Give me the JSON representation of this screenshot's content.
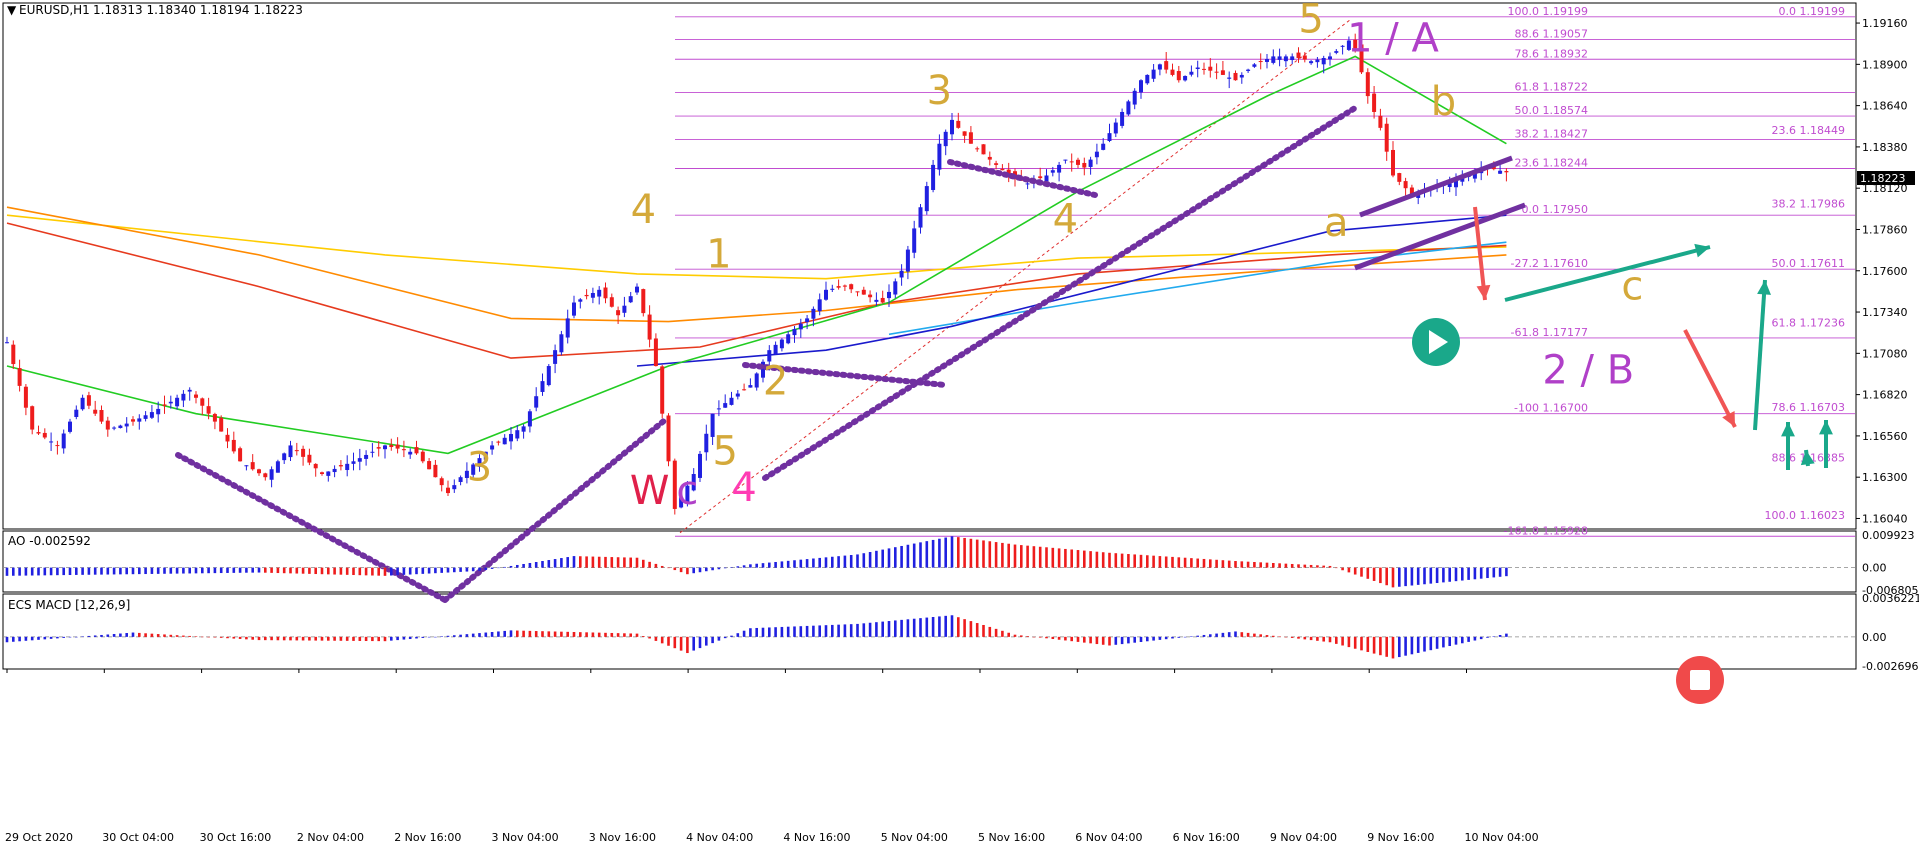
{
  "header": {
    "symbol": "EURUSD,H1",
    "ohlc": "1.18313 1.18340 1.18194 1.18223"
  },
  "current_price": "1.18223",
  "colors": {
    "bull": "#2020e0",
    "bear": "#ee1c1c",
    "fib": "#c04cd0",
    "wave_gold": "#d4a93a",
    "wave_purple": "#b040c8",
    "wave_pink": "#ff3cb4",
    "wave_red": "#e0204a",
    "teal": "#1aa88a",
    "arrow_red": "#f05555",
    "trendline": "#7030a0"
  },
  "chart_data": [
    {
      "type": "candlestick",
      "title": "EURUSD,H1",
      "x_tick_labels": [
        "29 Oct 2020",
        "30 Oct 04:00",
        "30 Oct 16:00",
        "2 Nov 04:00",
        "2 Nov 16:00",
        "3 Nov 04:00",
        "3 Nov 16:00",
        "4 Nov 04:00",
        "4 Nov 16:00",
        "5 Nov 04:00",
        "5 Nov 16:00",
        "6 Nov 04:00",
        "6 Nov 16:00",
        "9 Nov 04:00",
        "9 Nov 16:00",
        "10 Nov 04:00"
      ],
      "y_tick_labels": [
        "1.19160",
        "1.18900",
        "1.18640",
        "1.18380",
        "1.18120",
        "1.17860",
        "1.17600",
        "1.17340",
        "1.17080",
        "1.16820",
        "1.16560",
        "1.16300",
        "1.16040"
      ],
      "ylim": [
        1.1598,
        1.1928
      ],
      "price_path": [
        [
          0,
          1.1715
        ],
        [
          4,
          1.166
        ],
        [
          8,
          1.165
        ],
        [
          12,
          1.168
        ],
        [
          16,
          1.166
        ],
        [
          20,
          1.1665
        ],
        [
          25,
          1.1675
        ],
        [
          29,
          1.1685
        ],
        [
          33,
          1.1665
        ],
        [
          37,
          1.164
        ],
        [
          41,
          1.163
        ],
        [
          45,
          1.165
        ],
        [
          50,
          1.1632
        ],
        [
          55,
          1.164
        ],
        [
          60,
          1.165
        ],
        [
          65,
          1.1645
        ],
        [
          70,
          1.162
        ],
        [
          72,
          1.163
        ],
        [
          77,
          1.165
        ],
        [
          82,
          1.1662
        ],
        [
          86,
          1.17
        ],
        [
          90,
          1.174
        ],
        [
          94,
          1.1748
        ],
        [
          97,
          1.1732
        ],
        [
          100,
          1.175
        ],
        [
          103,
          1.17
        ],
        [
          106,
          1.161
        ],
        [
          109,
          1.1632
        ],
        [
          112,
          1.167
        ],
        [
          115,
          1.168
        ],
        [
          118,
          1.1688
        ],
        [
          121,
          1.171
        ],
        [
          124,
          1.172
        ],
        [
          127,
          1.173
        ],
        [
          130,
          1.1748
        ],
        [
          133,
          1.175
        ],
        [
          136,
          1.1745
        ],
        [
          139,
          1.174
        ],
        [
          142,
          1.176
        ],
        [
          145,
          1.18
        ],
        [
          148,
          1.184
        ],
        [
          150,
          1.1855
        ],
        [
          153,
          1.184
        ],
        [
          156,
          1.183
        ],
        [
          159,
          1.182
        ],
        [
          162,
          1.1815
        ],
        [
          165,
          1.182
        ],
        [
          168,
          1.183
        ],
        [
          171,
          1.1825
        ],
        [
          174,
          1.184
        ],
        [
          177,
          1.186
        ],
        [
          180,
          1.188
        ],
        [
          183,
          1.189
        ],
        [
          186,
          1.188
        ],
        [
          189,
          1.1888
        ],
        [
          192,
          1.1885
        ],
        [
          195,
          1.188
        ],
        [
          198,
          1.189
        ],
        [
          201,
          1.1895
        ],
        [
          204,
          1.1895
        ],
        [
          207,
          1.1892
        ],
        [
          210,
          1.1895
        ],
        [
          213,
          1.1905
        ],
        [
          214,
          1.19
        ],
        [
          216,
          1.187
        ],
        [
          218,
          1.185
        ],
        [
          220,
          1.182
        ],
        [
          223,
          1.1808
        ],
        [
          226,
          1.1812
        ],
        [
          229,
          1.1815
        ],
        [
          232,
          1.182
        ],
        [
          235,
          1.1825
        ],
        [
          238,
          1.1822
        ]
      ],
      "moving_averages": [
        {
          "color": "#ffcc00",
          "points": [
            [
              0,
              1.1795
            ],
            [
              60,
              1.177
            ],
            [
              100,
              1.1758
            ],
            [
              130,
              1.1755
            ],
            [
              170,
              1.1768
            ],
            [
              210,
              1.1772
            ],
            [
              238,
              1.1775
            ]
          ]
        },
        {
          "color": "#ff8a00",
          "points": [
            [
              0,
              1.18
            ],
            [
              40,
              1.177
            ],
            [
              80,
              1.173
            ],
            [
              105,
              1.1728
            ],
            [
              130,
              1.1735
            ],
            [
              160,
              1.1748
            ],
            [
              200,
              1.176
            ],
            [
              238,
              1.177
            ]
          ]
        },
        {
          "color": "#e63a1e",
          "points": [
            [
              0,
              1.179
            ],
            [
              40,
              1.175
            ],
            [
              80,
              1.1705
            ],
            [
              110,
              1.1712
            ],
            [
              140,
              1.174
            ],
            [
              170,
              1.1758
            ],
            [
              210,
              1.177
            ],
            [
              238,
              1.1776
            ]
          ]
        },
        {
          "color": "#22aaee",
          "points": [
            [
              140,
              1.172
            ],
            [
              170,
              1.174
            ],
            [
              210,
              1.1765
            ],
            [
              238,
              1.1778
            ]
          ]
        },
        {
          "color": "#1a1acc",
          "points": [
            [
              100,
              1.17
            ],
            [
              130,
              1.171
            ],
            [
              150,
              1.1725
            ],
            [
              180,
              1.1755
            ],
            [
              210,
              1.1785
            ],
            [
              238,
              1.1795
            ]
          ]
        },
        {
          "color": "#22cc22",
          "points": [
            [
              0,
              1.17
            ],
            [
              30,
              1.167
            ],
            [
              70,
              1.1645
            ],
            [
              105,
              1.17
            ],
            [
              140,
              1.174
            ],
            [
              170,
              1.181
            ],
            [
              200,
              1.187
            ],
            [
              214,
              1.1895
            ],
            [
              238,
              1.184
            ]
          ]
        }
      ],
      "fib_levels_left": [
        {
          "label": "100.0 1.19199",
          "value": 1.19199
        },
        {
          "label": "88.6 1.19057",
          "value": 1.19057
        },
        {
          "label": "78.6 1.18932",
          "value": 1.18932
        },
        {
          "label": "61.8 1.18722",
          "value": 1.18722
        },
        {
          "label": "50.0 1.18574",
          "value": 1.18574
        },
        {
          "label": "38.2 1.18427",
          "value": 1.18427
        },
        {
          "label": "23.6 1.18244",
          "value": 1.18244
        },
        {
          "label": "0.0 1.17950",
          "value": 1.1795
        },
        {
          "label": "-27.2 1.17610",
          "value": 1.1761
        },
        {
          "label": "-61.8 1.17177",
          "value": 1.17177
        },
        {
          "label": "-100 1.16700",
          "value": 1.167
        },
        {
          "label": "-161.8 1.15928",
          "value": 1.15928
        }
      ],
      "fib_levels_right": [
        {
          "label": "0.0 1.19199",
          "value": 1.19199
        },
        {
          "label": "23.6 1.18449",
          "value": 1.18449
        },
        {
          "label": "38.2 1.17986",
          "value": 1.17986
        },
        {
          "label": "50.0 1.17611",
          "value": 1.17611
        },
        {
          "label": "61.8 1.17236",
          "value": 1.17236
        },
        {
          "label": "78.6 1.16703",
          "value": 1.16703
        },
        {
          "label": "88.6 1.16385",
          "value": 1.16385
        },
        {
          "label": "100.0 1.16023",
          "value": 1.16023
        }
      ],
      "wave_labels": [
        {
          "text": "3",
          "color": "gold",
          "x": 75,
          "y": 1.1628
        },
        {
          "text": "4",
          "color": "gold",
          "x": 101,
          "y": 1.179
        },
        {
          "text": "W",
          "color": "red",
          "x": 102,
          "y": 1.1613
        },
        {
          "text": "c",
          "color": "purple",
          "x": 108,
          "y": 1.1613
        },
        {
          "text": "4",
          "color": "pink",
          "x": 117,
          "y": 1.1615
        },
        {
          "text": "5",
          "color": "gold",
          "x": 114,
          "y": 1.1638
        },
        {
          "text": "1",
          "color": "gold",
          "x": 113,
          "y": 1.1762
        },
        {
          "text": "2",
          "color": "gold",
          "x": 122,
          "y": 1.1682
        },
        {
          "text": "3",
          "color": "gold",
          "x": 148,
          "y": 1.1865
        },
        {
          "text": "4",
          "color": "gold",
          "x": 168,
          "y": 1.1784
        },
        {
          "text": "5",
          "color": "gold",
          "x": 207,
          "y": 1.191
        },
        {
          "text": "1 / A",
          "color": "purple",
          "x": 220,
          "y": 1.1898
        },
        {
          "text": "b",
          "color": "gold",
          "x": 228,
          "y": 1.1858
        },
        {
          "text": "a",
          "color": "gold",
          "x": 211,
          "y": 1.1782
        },
        {
          "text": "c",
          "color": "gold",
          "x": 258,
          "y": 1.1742
        },
        {
          "text": "2 / B",
          "color": "purple",
          "x": 251,
          "y": 1.1689
        }
      ]
    },
    {
      "type": "bar",
      "title": "AO -0.002592",
      "y_tick_labels": [
        "0.009923",
        "0.00",
        "-0.006805"
      ],
      "ylim": [
        -0.0068,
        0.0099
      ],
      "values_path": [
        [
          0,
          -0.0025
        ],
        [
          20,
          -0.002
        ],
        [
          40,
          -0.0015
        ],
        [
          60,
          -0.0025
        ],
        [
          75,
          -0.001
        ],
        [
          90,
          0.0035
        ],
        [
          100,
          0.003
        ],
        [
          108,
          -0.002
        ],
        [
          118,
          0.001
        ],
        [
          135,
          0.004
        ],
        [
          150,
          0.0095
        ],
        [
          160,
          0.007
        ],
        [
          175,
          0.0045
        ],
        [
          195,
          0.002
        ],
        [
          210,
          0.0005
        ],
        [
          220,
          -0.006
        ],
        [
          238,
          -0.0026
        ]
      ]
    },
    {
      "type": "bar",
      "title": "ECS MACD [12,26,9]",
      "y_tick_labels": [
        "0.0036221",
        "0.00",
        "-0.0026967"
      ],
      "ylim": [
        -0.0027,
        0.0036
      ],
      "values_path": [
        [
          0,
          -0.0005
        ],
        [
          20,
          0.0004
        ],
        [
          40,
          -0.0003
        ],
        [
          60,
          -0.0004
        ],
        [
          80,
          0.0006
        ],
        [
          100,
          0.0003
        ],
        [
          108,
          -0.0015
        ],
        [
          118,
          0.0008
        ],
        [
          135,
          0.0012
        ],
        [
          150,
          0.002
        ],
        [
          160,
          0.0002
        ],
        [
          175,
          -0.0008
        ],
        [
          195,
          0.0005
        ],
        [
          210,
          -0.0005
        ],
        [
          220,
          -0.002
        ],
        [
          238,
          0.0003
        ]
      ]
    }
  ],
  "indicators": {
    "ao_label": "AO -0.002592",
    "macd_label": "ECS MACD [12,26,9]"
  }
}
